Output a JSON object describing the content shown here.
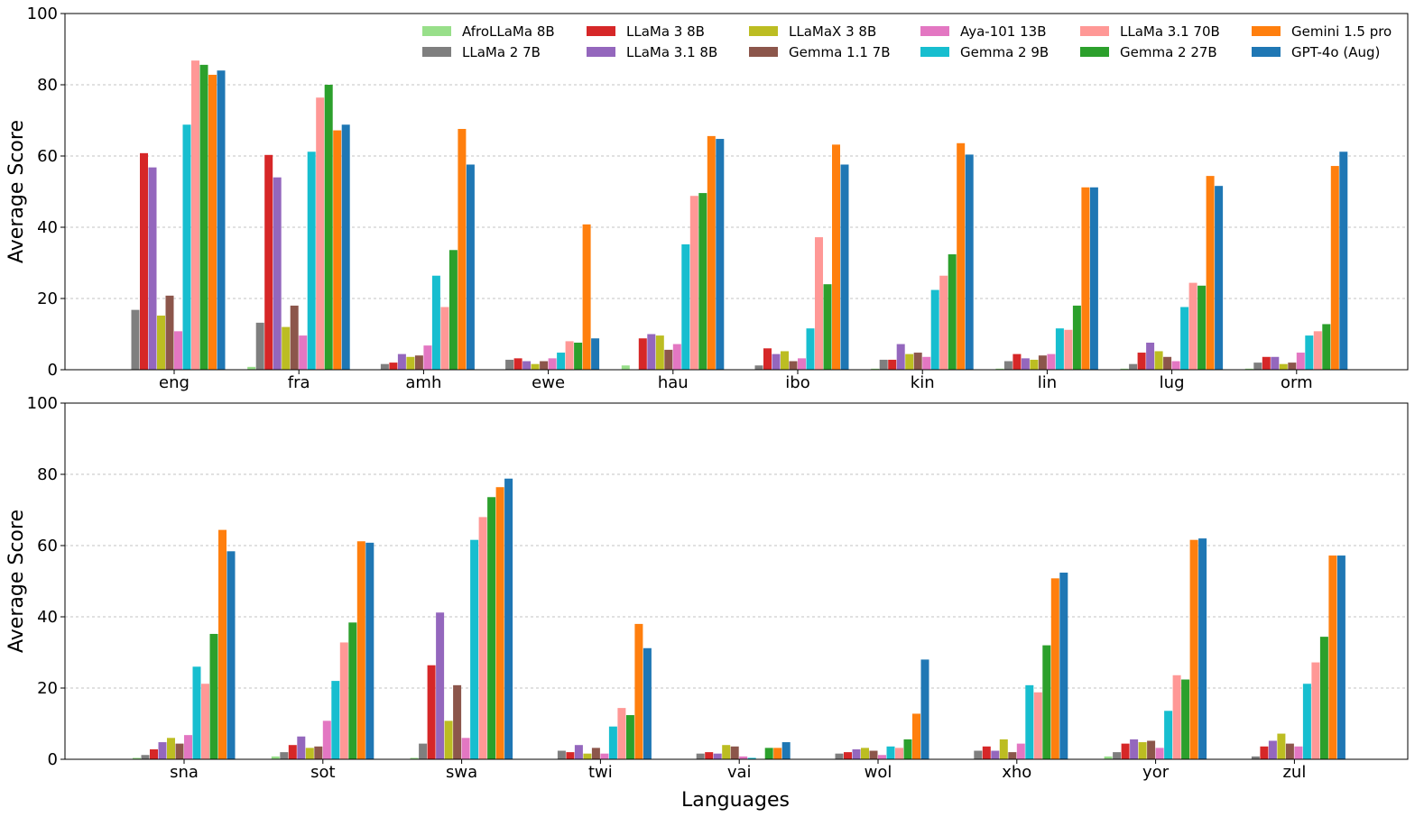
{
  "chart_data": {
    "type": "bar",
    "ylabel": "Average Score",
    "xlabel": "Languages",
    "ylim": [
      0,
      100
    ],
    "yticks": [
      0,
      20,
      40,
      60,
      80,
      100
    ],
    "grid": "horizontal dashed",
    "legend_position": "top-right",
    "series": [
      {
        "name": "AfroLLaMa 8B",
        "color": "#98df8a"
      },
      {
        "name": "LLaMa 2 7B",
        "color": "#7f7f7f"
      },
      {
        "name": "LLaMa 3 8B",
        "color": "#d62728"
      },
      {
        "name": "LLaMa 3.1 8B",
        "color": "#9467bd"
      },
      {
        "name": "LLaMaX 3 8B",
        "color": "#bcbd22"
      },
      {
        "name": "Gemma 1.1 7B",
        "color": "#8c564b"
      },
      {
        "name": "Aya-101 13B",
        "color": "#e377c2"
      },
      {
        "name": "Gemma 2 9B",
        "color": "#17becf"
      },
      {
        "name": "LLaMa 3.1 70B",
        "color": "#ff9896"
      },
      {
        "name": "Gemma 2 27B",
        "color": "#2ca02c"
      },
      {
        "name": "Gemini 1.5 pro",
        "color": "#ff7f0e"
      },
      {
        "name": "GPT-4o (Aug)",
        "color": "#1f77b4"
      }
    ],
    "panels": [
      {
        "categories": [
          "eng",
          "fra",
          "amh",
          "ewe",
          "hau",
          "ibo",
          "kin",
          "lin",
          "lug",
          "orm"
        ],
        "values": {
          "AfroLLaMa 8B": [
            0,
            0.8,
            0,
            0,
            1.2,
            0,
            0.3,
            0.3,
            0.3,
            0.3
          ],
          "LLaMa 2 7B": [
            16.8,
            13.2,
            1.6,
            2.8,
            0,
            1.2,
            2.8,
            2.4,
            1.6,
            2.0
          ],
          "LLaMa 3 8B": [
            60.8,
            60.3,
            2.0,
            3.2,
            8.8,
            6.0,
            2.8,
            4.4,
            4.8,
            3.6
          ],
          "LLaMa 3.1 8B": [
            56.8,
            54.0,
            4.4,
            2.4,
            10.0,
            4.4,
            7.2,
            3.2,
            7.6,
            3.6
          ],
          "LLaMaX 3 8B": [
            15.2,
            12.0,
            3.6,
            1.6,
            9.6,
            5.2,
            4.4,
            2.8,
            5.2,
            1.6
          ],
          "Gemma 1.1 7B": [
            20.8,
            18.0,
            4.0,
            2.4,
            5.6,
            2.4,
            4.8,
            4.0,
            3.6,
            2.0
          ],
          "Aya-101 13B": [
            10.8,
            9.6,
            6.8,
            3.2,
            7.2,
            3.2,
            3.6,
            4.4,
            2.4,
            4.8
          ],
          "Gemma 2 9B": [
            68.8,
            61.2,
            26.4,
            4.8,
            35.2,
            11.6,
            22.4,
            11.6,
            17.6,
            9.6
          ],
          "LLaMa 3.1 70B": [
            86.8,
            76.4,
            17.6,
            8.0,
            48.8,
            37.2,
            26.4,
            11.2,
            24.4,
            10.8
          ],
          "Gemma 2 27B": [
            85.6,
            80.0,
            33.6,
            7.6,
            49.6,
            24.0,
            32.4,
            18.0,
            23.6,
            12.8
          ],
          "Gemini 1.5 pro": [
            82.8,
            67.2,
            67.6,
            40.8,
            65.6,
            63.2,
            63.6,
            51.2,
            54.4,
            57.2
          ],
          "GPT-4o (Aug)": [
            84.0,
            68.8,
            57.6,
            8.8,
            64.8,
            57.6,
            60.4,
            51.2,
            51.6,
            61.2
          ]
        }
      },
      {
        "categories": [
          "sna",
          "sot",
          "swa",
          "twi",
          "vai",
          "wol",
          "xho",
          "yor",
          "zul"
        ],
        "values": {
          "AfroLLaMa 8B": [
            0.4,
            0.8,
            0.4,
            0,
            0,
            0,
            0,
            0.8,
            0
          ],
          "LLaMa 2 7B": [
            1.2,
            2.0,
            4.4,
            2.4,
            1.6,
            1.6,
            2.4,
            2.0,
            0.8
          ],
          "LLaMa 3 8B": [
            2.8,
            4.0,
            26.4,
            2.0,
            2.0,
            2.0,
            3.6,
            4.4,
            3.6
          ],
          "LLaMa 3.1 8B": [
            4.8,
            6.4,
            41.2,
            4.0,
            1.6,
            2.8,
            2.4,
            5.6,
            5.2
          ],
          "LLaMaX 3 8B": [
            6.0,
            3.2,
            10.8,
            1.6,
            4.0,
            3.2,
            5.6,
            4.8,
            7.2
          ],
          "Gemma 1.1 7B": [
            4.4,
            3.6,
            20.8,
            3.2,
            3.6,
            2.4,
            2.0,
            5.2,
            4.4
          ],
          "Aya-101 13B": [
            6.8,
            10.8,
            6.0,
            1.6,
            0.8,
            1.2,
            4.4,
            3.2,
            3.6
          ],
          "Gemma 2 9B": [
            26.0,
            22.0,
            61.6,
            9.2,
            0.4,
            3.6,
            20.8,
            13.6,
            21.2
          ],
          "LLaMa 3.1 70B": [
            21.2,
            32.8,
            68.0,
            14.4,
            0,
            3.2,
            18.8,
            23.6,
            27.2
          ],
          "Gemma 2 27B": [
            35.2,
            38.4,
            73.6,
            12.4,
            3.2,
            5.6,
            32.0,
            22.4,
            34.4
          ],
          "Gemini 1.5 pro": [
            64.4,
            61.2,
            76.4,
            38.0,
            3.2,
            12.8,
            50.8,
            61.6,
            57.2
          ],
          "GPT-4o (Aug)": [
            58.4,
            60.8,
            78.8,
            31.2,
            4.8,
            28.0,
            52.4,
            62.0,
            57.2
          ]
        }
      }
    ]
  }
}
